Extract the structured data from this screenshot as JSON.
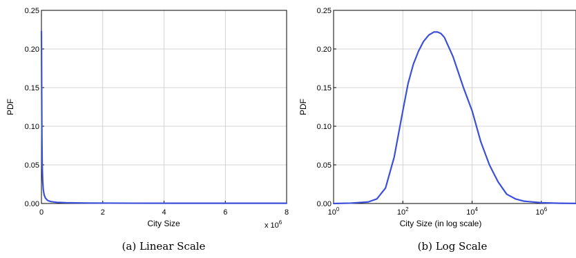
{
  "colors": {
    "series": "#3b4fd8"
  },
  "chart_data": [
    {
      "type": "line",
      "caption": "(a)  Linear Scale",
      "xlabel": "City Size",
      "ylabel": "PDF",
      "x_multiplier_label": "x 10",
      "x_multiplier_exp": "6",
      "xlim": [
        0,
        8000000
      ],
      "ylim": [
        0,
        0.25
      ],
      "xticks": [
        0,
        2000000,
        4000000,
        6000000,
        8000000
      ],
      "xtick_labels": [
        "0",
        "2",
        "4",
        "6",
        "8"
      ],
      "yticks": [
        0,
        0.05,
        0.1,
        0.15,
        0.2,
        0.25
      ],
      "ytick_labels": [
        "0.00",
        "0.05",
        "0.10",
        "0.15",
        "0.20",
        "0.25"
      ],
      "grid": true,
      "series": [
        {
          "x": [
            0,
            3000,
            8000,
            15000,
            25000,
            40000,
            60000,
            90000,
            130000,
            200000,
            300000,
            500000,
            800000,
            1500000,
            3000000,
            5000000,
            8000000
          ],
          "y": [
            0.223,
            0.2,
            0.15,
            0.09,
            0.05,
            0.03,
            0.018,
            0.011,
            0.007,
            0.004,
            0.0025,
            0.0015,
            0.001,
            0.0006,
            0.0004,
            0.0003,
            0.0003
          ]
        }
      ]
    },
    {
      "type": "line",
      "caption": "(b)  Log Scale",
      "xlabel": "City Size (in log scale)",
      "ylabel": "PDF",
      "xscale": "log",
      "xlim": [
        1,
        10000000
      ],
      "ylim": [
        0,
        0.25
      ],
      "xticks": [
        1,
        100,
        10000,
        1000000
      ],
      "xtick_labels": [
        {
          "base": "10",
          "exp": "0"
        },
        {
          "base": "10",
          "exp": "2"
        },
        {
          "base": "10",
          "exp": "4"
        },
        {
          "base": "10",
          "exp": "6"
        }
      ],
      "yticks": [
        0,
        0.05,
        0.1,
        0.15,
        0.2,
        0.25
      ],
      "ytick_labels": [
        "0.00",
        "0.05",
        "0.10",
        "0.15",
        "0.20",
        "0.25"
      ],
      "grid": true,
      "series": [
        {
          "x": [
            1,
            3.16,
            10,
            17.8,
            31.6,
            56.2,
            100,
            141,
            200,
            282,
            398,
            562,
            794,
            1000,
            1259,
            1585,
            1995,
            2818,
            3981,
            5623,
            10000,
            17783,
            31623,
            56234,
            100000,
            177828,
            316228,
            1000000,
            3162278,
            10000000
          ],
          "y": [
            0.0,
            0.0005,
            0.002,
            0.006,
            0.02,
            0.06,
            0.12,
            0.155,
            0.18,
            0.197,
            0.21,
            0.218,
            0.222,
            0.222,
            0.22,
            0.215,
            0.205,
            0.19,
            0.17,
            0.15,
            0.12,
            0.08,
            0.05,
            0.028,
            0.012,
            0.006,
            0.003,
            0.001,
            0.0003,
            0.0001
          ]
        }
      ]
    }
  ]
}
